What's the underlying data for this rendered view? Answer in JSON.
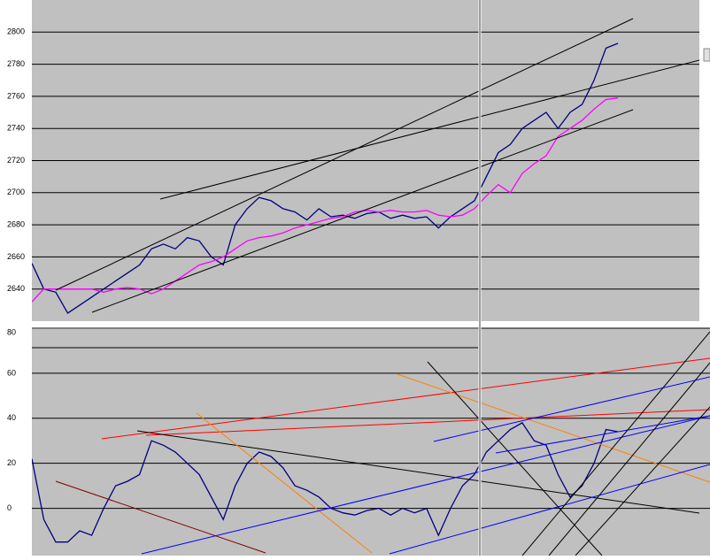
{
  "chart_data": [
    {
      "type": "line",
      "ylim": [
        2620,
        2820
      ],
      "yticks": [
        2640,
        2660,
        2680,
        2700,
        2720,
        2740,
        2760,
        2780,
        2800
      ],
      "grid": true,
      "series": [
        {
          "color": "#000080",
          "values": [
            2656,
            2640,
            2638,
            2625,
            2630,
            2635,
            2640,
            2645,
            2650,
            2655,
            2665,
            2668,
            2665,
            2672,
            2670,
            2660,
            2655,
            2680,
            2690,
            2697,
            2695,
            2690,
            2688,
            2683,
            2690,
            2685,
            2686,
            2684,
            2687,
            2688,
            2684,
            2686,
            2684,
            2685,
            2678,
            2685,
            2690,
            2695,
            2710,
            2725,
            2730,
            2740,
            2745,
            2750,
            2740,
            2750,
            2755,
            2770,
            2790,
            2793
          ]
        },
        {
          "color": "#ff00ff",
          "values": [
            2632,
            2640,
            2640,
            2640,
            2640,
            2640,
            2638,
            2640,
            2641,
            2640,
            2637,
            2640,
            2645,
            2650,
            2655,
            2657,
            2660,
            2665,
            2670,
            2672,
            2673,
            2675,
            2678,
            2680,
            2682,
            2684,
            2685,
            2688,
            2689,
            2688,
            2689,
            2688,
            2688,
            2689,
            2686,
            2685,
            2686,
            2690,
            2698,
            2705,
            2700,
            2712,
            2718,
            2723,
            2735,
            2740,
            2745,
            2752,
            2758,
            2759
          ]
        }
      ]
    },
    {
      "type": "line",
      "ylim": [
        -21,
        80
      ],
      "yticks": [
        0,
        20,
        40,
        60,
        80
      ],
      "grid": true,
      "series": [
        {
          "color": "#000080",
          "values": [
            22,
            -5,
            -15,
            -15,
            -10,
            -12,
            0,
            10,
            12,
            15,
            30,
            28,
            25,
            20,
            15,
            5,
            -5,
            10,
            20,
            25,
            23,
            18,
            10,
            8,
            5,
            0,
            -2,
            -3,
            -1,
            0,
            -3,
            0,
            -2,
            0,
            -12,
            0,
            10,
            15,
            25,
            30,
            35,
            38,
            30,
            28,
            15,
            5,
            10,
            20,
            35,
            34
          ]
        }
      ]
    }
  ]
}
